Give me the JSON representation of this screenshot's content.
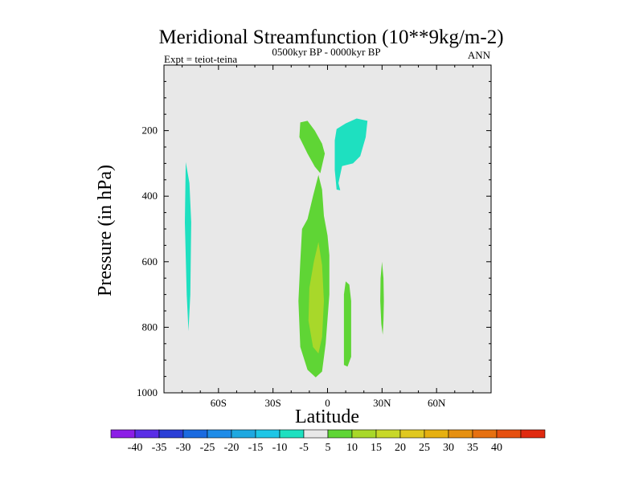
{
  "chart_data": {
    "type": "filled-contour",
    "title": "Meridional Streamfunction (10**9kg/m-2)",
    "left_label": "Expt = teiot-teina",
    "center_label": "0500kyr BP - 0000kyr BP",
    "right_label": "ANN",
    "xlabel": "Latitude",
    "ylabel": "Pressure (in hPa)",
    "xlim": [
      -90,
      90
    ],
    "ylim": [
      0,
      1000
    ],
    "y_inverted": true,
    "x_ticks": [
      {
        "value": -60,
        "label": "60S"
      },
      {
        "value": -30,
        "label": "30S"
      },
      {
        "value": 0,
        "label": "0"
      },
      {
        "value": 30,
        "label": "30N"
      },
      {
        "value": 60,
        "label": "60N"
      }
    ],
    "y_ticks": [
      200,
      400,
      600,
      800,
      1000
    ],
    "background_color": "#e8e8e8",
    "regions": [
      {
        "name": "sh-highlat-negative",
        "level": "-10 to -5",
        "color": "#1ee0c0",
        "points": [
          [
            -78,
            296
          ],
          [
            -76,
            360
          ],
          [
            -75,
            480
          ],
          [
            -75.5,
            700
          ],
          [
            -76.5,
            812
          ],
          [
            -77.5,
            700
          ],
          [
            -78.5,
            480
          ],
          [
            -78.2,
            360
          ]
        ]
      },
      {
        "name": "equator-upper-positive",
        "level": "5 to 10",
        "color": "#5fd535",
        "points": [
          [
            -15,
            175
          ],
          [
            -11,
            170
          ],
          [
            -7,
            200
          ],
          [
            -3,
            240
          ],
          [
            -1.5,
            270
          ],
          [
            -4,
            330
          ],
          [
            -7,
            310
          ],
          [
            -11,
            270
          ],
          [
            -15.5,
            220
          ]
        ]
      },
      {
        "name": "equator-lower-positive",
        "level": "5 to 10",
        "color": "#5fd535",
        "points": [
          [
            -11,
            470
          ],
          [
            -8,
            400
          ],
          [
            -5,
            335
          ],
          [
            -3,
            380
          ],
          [
            -2,
            460
          ],
          [
            0,
            520
          ],
          [
            1,
            580
          ],
          [
            1,
            700
          ],
          [
            -1,
            850
          ],
          [
            -3,
            935
          ],
          [
            -6.5,
            953
          ],
          [
            -11,
            930
          ],
          [
            -15,
            860
          ],
          [
            -16,
            720
          ],
          [
            -15,
            600
          ],
          [
            -14,
            500
          ]
        ]
      },
      {
        "name": "nh-upper-negative",
        "level": "-10 to -5",
        "color": "#1ee0c0",
        "points": [
          [
            5,
            195
          ],
          [
            10,
            178
          ],
          [
            16,
            163
          ],
          [
            22,
            170
          ],
          [
            21,
            220
          ],
          [
            18,
            278
          ],
          [
            14,
            300
          ],
          [
            8,
            308
          ],
          [
            6,
            360
          ],
          [
            7,
            382
          ],
          [
            5,
            380
          ],
          [
            4,
            320
          ],
          [
            4,
            230
          ]
        ]
      },
      {
        "name": "nh-lower-positive-1",
        "level": "5 to 10",
        "color": "#5fd535",
        "points": [
          [
            10,
            660
          ],
          [
            12,
            670
          ],
          [
            13,
            720
          ],
          [
            13,
            800
          ],
          [
            13,
            890
          ],
          [
            11,
            920
          ],
          [
            9,
            915
          ],
          [
            9,
            800
          ],
          [
            9,
            700
          ]
        ]
      },
      {
        "name": "nh-lower-positive-2",
        "level": "5 to 10",
        "color": "#5fd535",
        "points": [
          [
            30,
            600
          ],
          [
            30.8,
            650
          ],
          [
            31,
            720
          ],
          [
            30.8,
            780
          ],
          [
            30.4,
            823
          ],
          [
            29.6,
            790
          ],
          [
            29,
            720
          ],
          [
            29.2,
            650
          ]
        ]
      },
      {
        "name": "equator-core-positive",
        "level": "10 to 15",
        "color": "#a8d82a",
        "points": [
          [
            -5,
            540
          ],
          [
            -3,
            610
          ],
          [
            -2,
            720
          ],
          [
            -3,
            830
          ],
          [
            -5,
            880
          ],
          [
            -8,
            860
          ],
          [
            -10.5,
            780
          ],
          [
            -10,
            680
          ],
          [
            -7.5,
            600
          ]
        ]
      }
    ],
    "colorbar": {
      "colors": [
        "#8c1ee6",
        "#5a2ee6",
        "#2a3ed6",
        "#1a6ae0",
        "#1e8ce8",
        "#1ea8e0",
        "#1ec6e6",
        "#1ee0c0",
        "#e8e8e8",
        "#5fd535",
        "#a8d82a",
        "#c8d828",
        "#e0c820",
        "#e6b010",
        "#e69010",
        "#e67010",
        "#e65010",
        "#e02a10"
      ],
      "labels": [
        "-40",
        "-35",
        "-30",
        "-25",
        "-20",
        "-15",
        "-10",
        "-5",
        "5",
        "10",
        "15",
        "20",
        "25",
        "30",
        "35",
        "40"
      ]
    }
  }
}
